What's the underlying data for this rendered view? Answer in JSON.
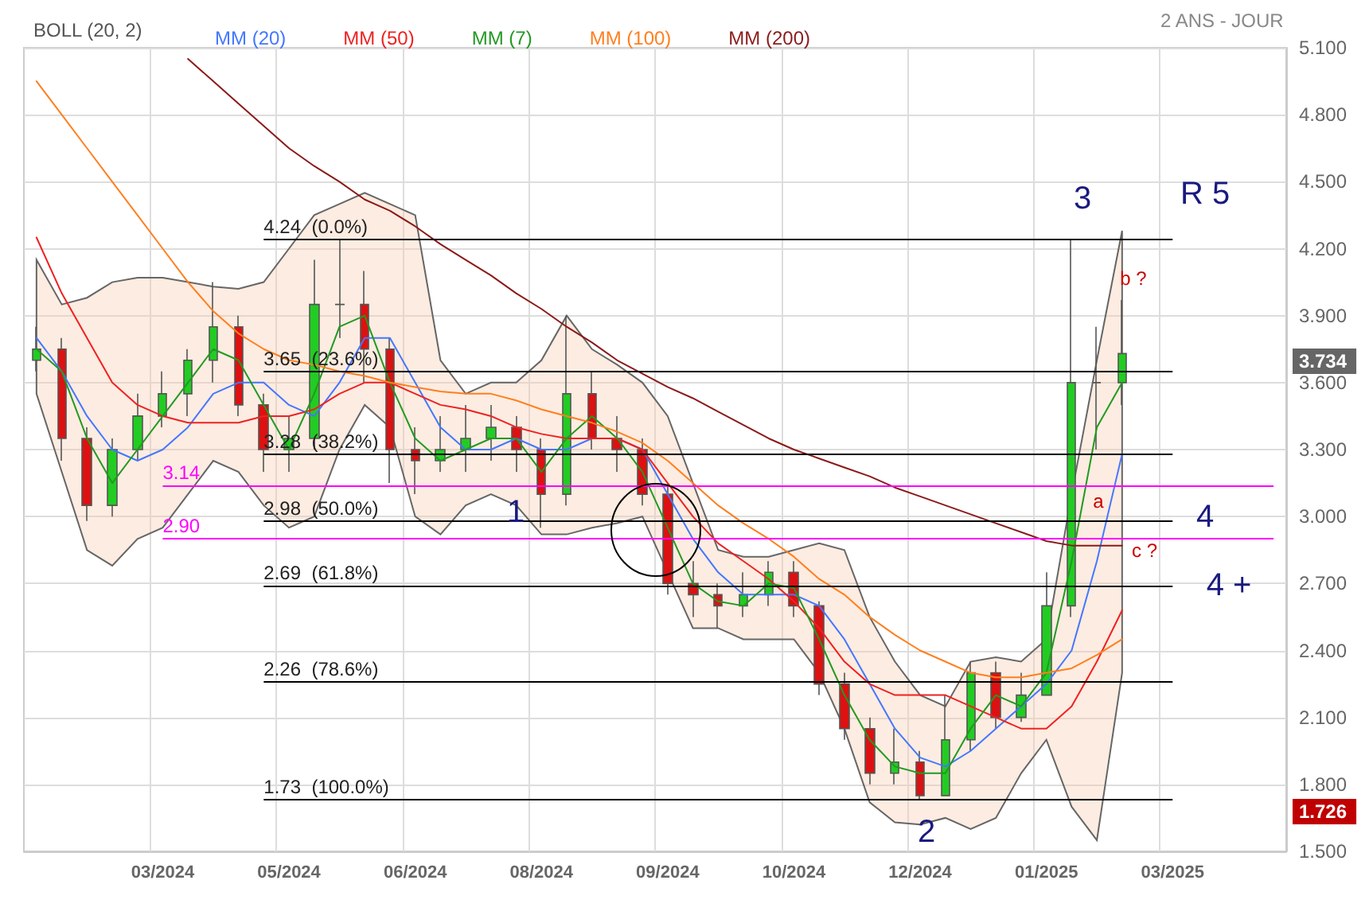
{
  "chart_data": {
    "type": "candlestick",
    "subtitle": "2 ANS - JOUR",
    "legend_title": "BOLL (20, 2)",
    "categories": [
      null,
      null,
      null,
      null,
      null,
      "03/2024",
      null,
      null,
      null,
      null,
      "05/2024",
      null,
      null,
      null,
      null,
      "06/2024",
      null,
      null,
      null,
      null,
      "08/2024",
      null,
      null,
      null,
      null,
      "09/2024",
      null,
      null,
      null,
      null,
      "10/2024",
      null,
      null,
      null,
      null,
      "12/2024",
      null,
      null,
      null,
      null,
      "01/2025",
      null,
      null,
      null,
      null,
      "03/2025",
      null,
      null,
      null,
      null
    ],
    "ohlc": [
      [
        3.7,
        3.85,
        3.65,
        3.75
      ],
      [
        3.75,
        3.8,
        3.25,
        3.35
      ],
      [
        3.35,
        3.4,
        2.98,
        3.05
      ],
      [
        3.05,
        3.35,
        3.0,
        3.3
      ],
      [
        3.3,
        3.55,
        3.25,
        3.45
      ],
      [
        3.45,
        3.65,
        3.4,
        3.55
      ],
      [
        3.55,
        3.75,
        3.45,
        3.7
      ],
      [
        3.7,
        4.05,
        3.6,
        3.85
      ],
      [
        3.85,
        3.9,
        3.45,
        3.5
      ],
      [
        3.5,
        3.55,
        3.2,
        3.3
      ],
      [
        3.3,
        3.45,
        3.2,
        3.35
      ],
      [
        3.35,
        4.15,
        3.3,
        3.95
      ],
      [
        3.95,
        4.24,
        3.8,
        3.95
      ],
      [
        3.95,
        4.1,
        3.6,
        3.75
      ],
      [
        3.75,
        3.8,
        3.15,
        3.3
      ],
      [
        3.3,
        3.4,
        3.1,
        3.25
      ],
      [
        3.25,
        3.45,
        3.2,
        3.3
      ],
      [
        3.3,
        3.5,
        3.2,
        3.35
      ],
      [
        3.35,
        3.5,
        3.25,
        3.4
      ],
      [
        3.4,
        3.45,
        3.2,
        3.3
      ],
      [
        3.3,
        3.35,
        2.95,
        3.1
      ],
      [
        3.1,
        3.9,
        3.05,
        3.55
      ],
      [
        3.55,
        3.65,
        3.3,
        3.35
      ],
      [
        3.35,
        3.45,
        3.2,
        3.3
      ],
      [
        3.3,
        3.35,
        3.05,
        3.1
      ],
      [
        3.1,
        3.15,
        2.65,
        2.7
      ],
      [
        2.7,
        2.8,
        2.55,
        2.65
      ],
      [
        2.65,
        2.7,
        2.5,
        2.6
      ],
      [
        2.6,
        2.75,
        2.55,
        2.65
      ],
      [
        2.65,
        2.8,
        2.6,
        2.75
      ],
      [
        2.75,
        2.8,
        2.55,
        2.6
      ],
      [
        2.6,
        2.62,
        2.2,
        2.25
      ],
      [
        2.25,
        2.3,
        2.0,
        2.05
      ],
      [
        2.05,
        2.1,
        1.8,
        1.85
      ],
      [
        1.85,
        2.05,
        1.8,
        1.9
      ],
      [
        1.9,
        1.95,
        1.73,
        1.75
      ],
      [
        1.75,
        2.2,
        1.75,
        2.0
      ],
      [
        2.0,
        2.35,
        1.95,
        2.3
      ],
      [
        2.3,
        2.35,
        2.05,
        2.1
      ],
      [
        2.1,
        2.3,
        2.08,
        2.2
      ],
      [
        2.2,
        2.75,
        2.2,
        2.6
      ],
      [
        2.6,
        4.24,
        2.55,
        3.6
      ],
      [
        3.6,
        3.85,
        3.3,
        3.6
      ],
      [
        3.6,
        3.97,
        3.5,
        3.73
      ],
      null,
      null,
      null,
      null,
      null,
      null
    ],
    "series": [
      {
        "type": "line",
        "name": "MM (20)",
        "color": "#4477ff",
        "values": [
          3.8,
          3.65,
          3.45,
          3.3,
          3.25,
          3.3,
          3.4,
          3.55,
          3.6,
          3.6,
          3.5,
          3.45,
          3.6,
          3.8,
          3.8,
          3.6,
          3.4,
          3.3,
          3.3,
          3.35,
          3.3,
          3.3,
          3.35,
          3.35,
          3.3,
          3.1,
          2.9,
          2.75,
          2.65,
          2.65,
          2.65,
          2.6,
          2.45,
          2.25,
          2.05,
          1.92,
          1.88,
          1.95,
          2.05,
          2.15,
          2.25,
          2.4,
          2.8,
          3.28,
          null,
          null,
          null,
          null,
          null,
          null
        ],
        "upper": [
          4.15,
          3.95,
          3.98,
          4.05,
          4.07,
          4.07,
          4.05,
          4.03,
          4.02,
          4.05,
          4.2,
          4.35,
          4.4,
          4.45,
          4.4,
          4.35,
          3.7,
          3.55,
          3.6,
          3.6,
          3.7,
          3.9,
          3.75,
          3.68,
          3.6,
          3.45,
          3.15,
          2.85,
          2.82,
          2.82,
          2.85,
          2.88,
          2.85,
          2.55,
          2.35,
          2.2,
          2.15,
          2.35,
          2.37,
          2.35,
          2.45,
          3.1,
          3.7,
          4.28,
          null,
          null,
          null,
          null,
          null,
          null
        ],
        "lower": [
          3.55,
          3.2,
          2.85,
          2.78,
          2.9,
          2.95,
          3.1,
          3.25,
          3.2,
          3.05,
          2.95,
          3.0,
          3.3,
          3.5,
          3.4,
          3.0,
          2.92,
          3.05,
          3.1,
          3.05,
          2.92,
          2.92,
          2.95,
          2.97,
          3.0,
          2.75,
          2.5,
          2.5,
          2.45,
          2.45,
          2.45,
          2.3,
          2.05,
          1.72,
          1.63,
          1.62,
          1.65,
          1.6,
          1.65,
          1.85,
          2.0,
          1.7,
          1.55,
          2.3,
          null,
          null,
          null,
          null,
          null,
          null
        ]
      },
      {
        "type": "line",
        "name": "MM (50)",
        "color": "#ee2222",
        "values": [
          4.25,
          4.0,
          3.8,
          3.6,
          3.5,
          3.45,
          3.42,
          3.42,
          3.42,
          3.45,
          3.45,
          3.48,
          3.55,
          3.6,
          3.6,
          3.55,
          3.5,
          3.48,
          3.45,
          3.4,
          3.37,
          3.35,
          3.35,
          3.35,
          3.3,
          3.15,
          3.0,
          2.88,
          2.8,
          2.72,
          2.62,
          2.5,
          2.35,
          2.25,
          2.2,
          2.2,
          2.2,
          2.15,
          2.1,
          2.05,
          2.05,
          2.15,
          2.35,
          2.58,
          null,
          null,
          null,
          null,
          null,
          null
        ]
      },
      {
        "type": "line",
        "name": "MM (7)",
        "color": "#229922",
        "values": [
          3.75,
          3.65,
          3.35,
          3.15,
          3.3,
          3.45,
          3.6,
          3.75,
          3.7,
          3.5,
          3.3,
          3.55,
          3.85,
          3.9,
          3.6,
          3.35,
          3.25,
          3.3,
          3.35,
          3.35,
          3.2,
          3.35,
          3.45,
          3.35,
          3.2,
          2.95,
          2.7,
          2.62,
          2.6,
          2.7,
          2.68,
          2.45,
          2.2,
          2.0,
          1.88,
          1.85,
          1.85,
          2.05,
          2.2,
          2.15,
          2.3,
          2.8,
          3.4,
          3.6,
          null,
          null,
          null,
          null,
          null,
          null
        ]
      },
      {
        "type": "line",
        "name": "MM (100)",
        "color": "#ff7f1f",
        "values": [
          4.95,
          4.8,
          4.65,
          4.5,
          4.35,
          4.2,
          4.05,
          3.92,
          3.82,
          3.75,
          3.7,
          3.68,
          3.65,
          3.63,
          3.6,
          3.58,
          3.56,
          3.55,
          3.55,
          3.52,
          3.48,
          3.45,
          3.42,
          3.38,
          3.33,
          3.25,
          3.15,
          3.05,
          2.97,
          2.9,
          2.82,
          2.72,
          2.65,
          2.55,
          2.47,
          2.4,
          2.35,
          2.3,
          2.28,
          2.28,
          2.3,
          2.32,
          2.38,
          2.45,
          null,
          null,
          null,
          null,
          null,
          null
        ]
      },
      {
        "type": "line",
        "name": "MM (200)",
        "color": "#8b1a1a",
        "values": [
          null,
          null,
          null,
          null,
          null,
          null,
          5.05,
          4.95,
          4.85,
          4.75,
          4.65,
          4.57,
          4.5,
          4.42,
          4.37,
          4.3,
          4.22,
          4.15,
          4.08,
          4.0,
          3.93,
          3.85,
          3.78,
          3.7,
          3.64,
          3.58,
          3.53,
          3.47,
          3.41,
          3.35,
          3.3,
          3.26,
          3.22,
          3.18,
          3.13,
          3.09,
          3.05,
          3.01,
          2.97,
          2.93,
          2.89,
          2.87,
          2.87,
          2.87,
          null,
          null,
          null,
          null,
          null,
          null
        ]
      }
    ],
    "ylim": [
      1.5,
      5.1
    ],
    "yticks": [
      {
        "value": 1.5,
        "label": "1.500"
      },
      {
        "value": 1.8,
        "label": "1.800"
      },
      {
        "value": 2.1,
        "label": "2.100"
      },
      {
        "value": 2.4,
        "label": "2.400"
      },
      {
        "value": 2.7,
        "label": "2.700"
      },
      {
        "value": 3.0,
        "label": "3.000"
      },
      {
        "value": 3.3,
        "label": "3.300"
      },
      {
        "value": 3.6,
        "label": "3.600"
      },
      {
        "value": 3.9,
        "label": "3.900"
      },
      {
        "value": 4.2,
        "label": "4.200"
      },
      {
        "value": 4.5,
        "label": "4.500"
      },
      {
        "value": 4.8,
        "label": "4.800"
      },
      {
        "value": 5.1,
        "label": "5.100"
      }
    ],
    "grid": true,
    "legend": "top left",
    "marker": "none",
    "ref_lines": [
      {
        "axis": "y",
        "value": 4.24,
        "label": "4.24  (0.0%)",
        "color": "#000000"
      },
      {
        "axis": "y",
        "value": 3.65,
        "label": "3.65  (23.6%)",
        "color": "#000000"
      },
      {
        "axis": "y",
        "value": 3.28,
        "label": "3.28  (38.2%)",
        "color": "#000000"
      },
      {
        "axis": "y",
        "value": 2.98,
        "label": "2.98  (50.0%)",
        "color": "#000000"
      },
      {
        "axis": "y",
        "value": 2.69,
        "label": "2.69  (61.8%)",
        "color": "#000000"
      },
      {
        "axis": "y",
        "value": 2.26,
        "label": "2.26  (78.6%)",
        "color": "#000000"
      },
      {
        "axis": "y",
        "value": 1.73,
        "label": "1.73  (100.0%)",
        "color": "#000000"
      },
      {
        "axis": "y",
        "value": 3.14,
        "label": "3.14",
        "color": "#ff00ff"
      },
      {
        "axis": "y",
        "value": 2.9,
        "label": "2.90",
        "color": "#ff00ff"
      }
    ],
    "annotations": [
      "1",
      "2",
      "3",
      "4",
      "4 +",
      "R 5",
      "a",
      "b ?",
      "c ?",
      "3.734",
      "1.726"
    ]
  }
}
